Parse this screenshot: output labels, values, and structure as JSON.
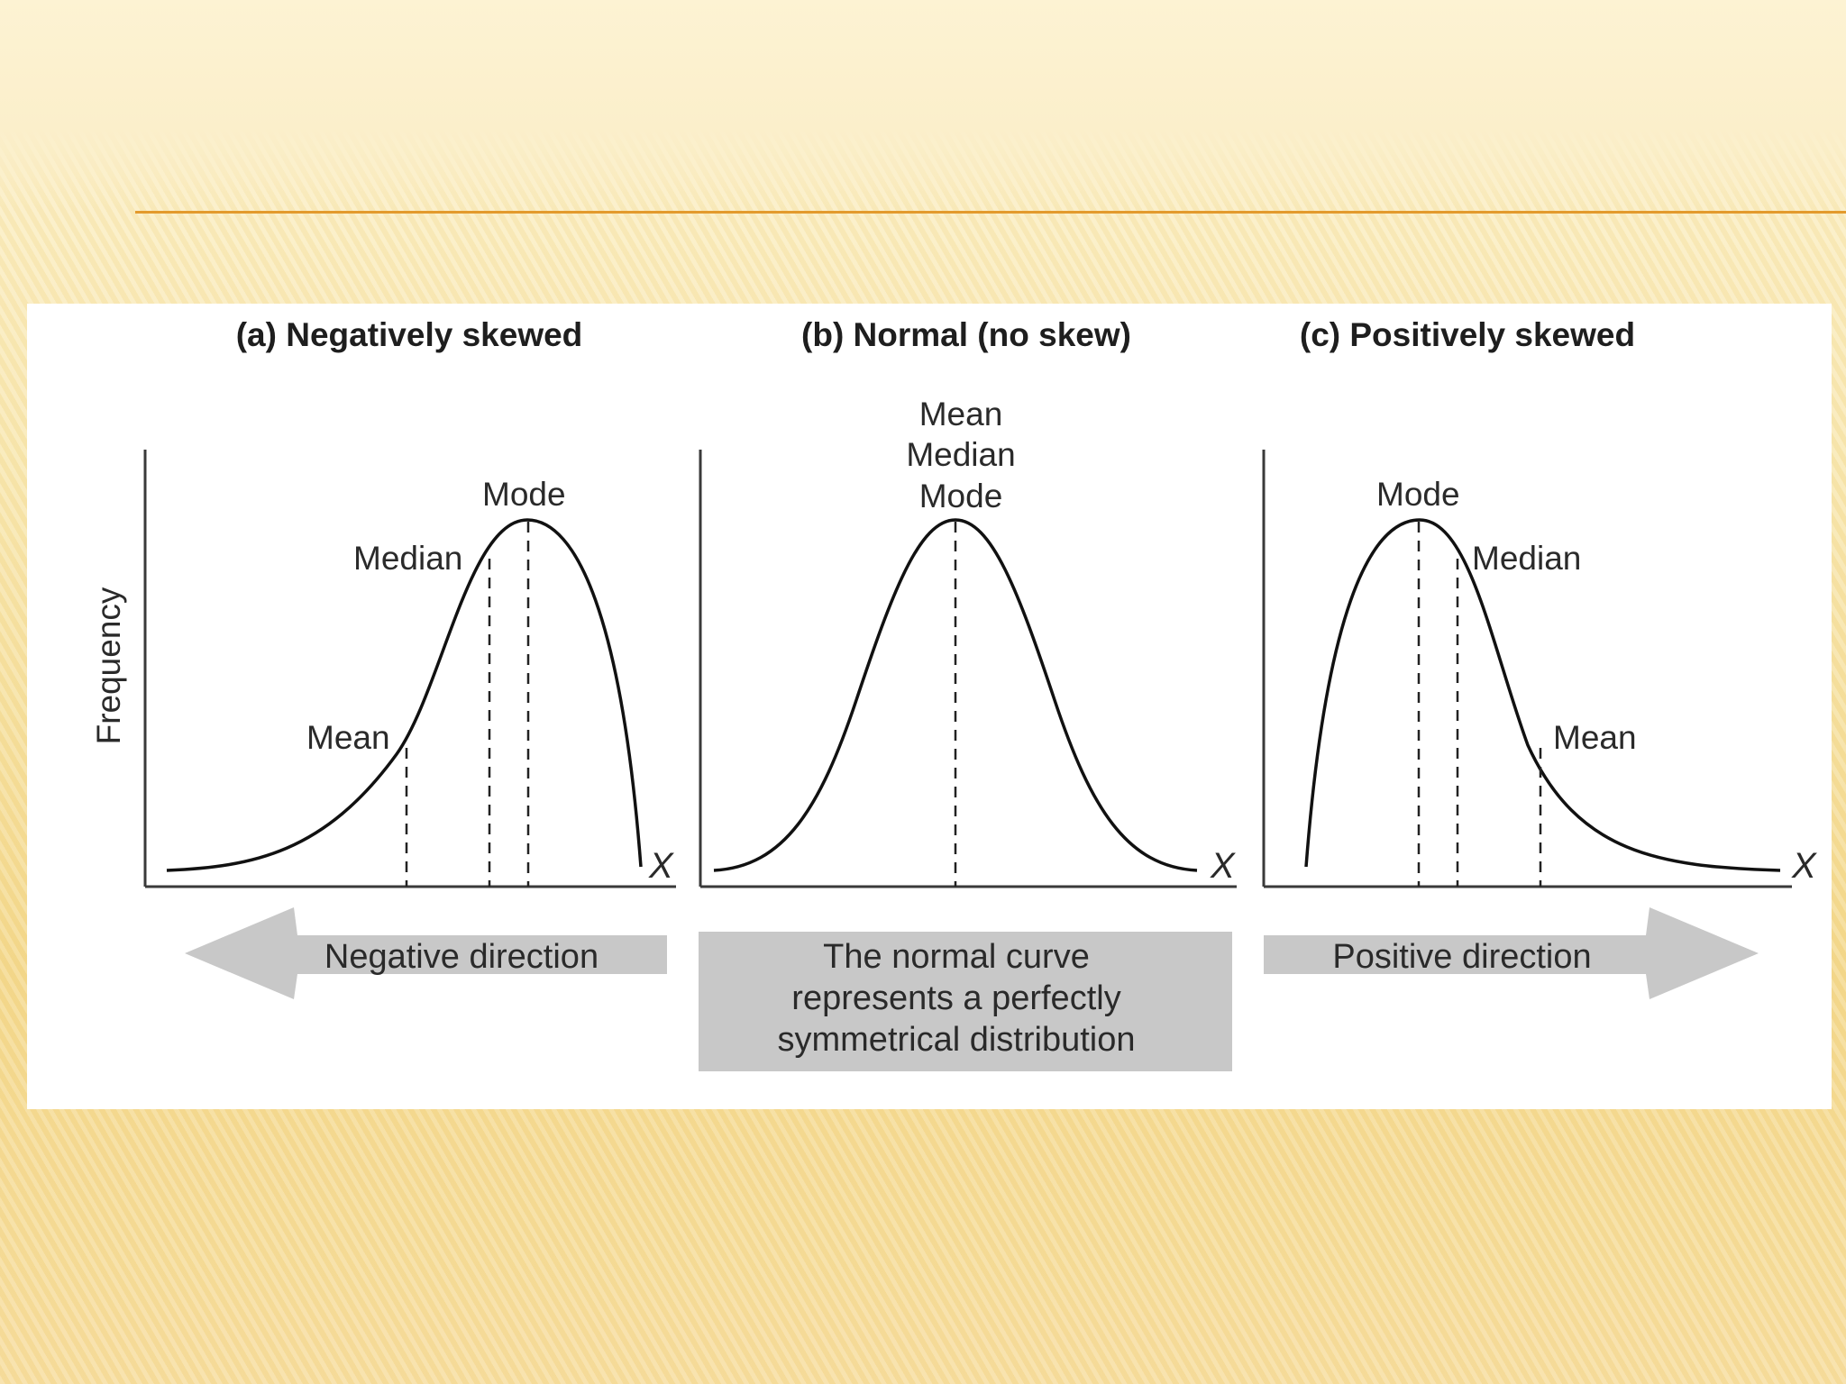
{
  "panels": {
    "a": {
      "title": "(a) Negatively skewed",
      "mean_label": "Mean",
      "median_label": "Median",
      "mode_label": "Mode",
      "x_label": "X"
    },
    "b": {
      "title": "(b) Normal (no skew)",
      "mean_label": "Mean",
      "median_label": "Median",
      "mode_label": "Mode",
      "x_label": "X"
    },
    "c": {
      "title": "(c) Positively skewed",
      "mean_label": "Mean",
      "median_label": "Median",
      "mode_label": "Mode",
      "x_label": "X"
    }
  },
  "y_axis_label": "Frequency",
  "negative_direction_label": "Negative direction",
  "positive_direction_label": "Positive direction",
  "normal_caption": {
    "line1": "The normal curve",
    "line2": "represents a perfectly",
    "line3": "symmetrical distribution"
  },
  "colors": {
    "rule": "#e39a2d",
    "arrow_fill": "#c8c8c8",
    "curve": "#111111"
  }
}
